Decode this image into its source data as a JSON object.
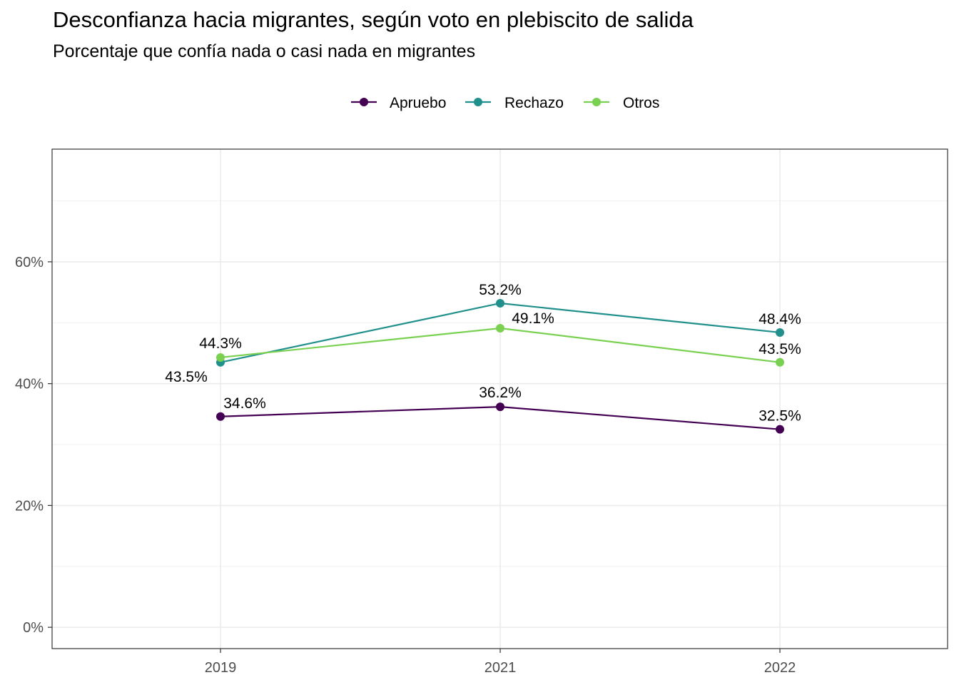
{
  "title": "Desconfianza hacia migrantes, según voto en plebiscito de salida",
  "subtitle": "Porcentaje que confía nada o casi nada en migrantes",
  "chart_data": {
    "type": "line",
    "title": "Desconfianza hacia migrantes, según voto en plebiscito de salida",
    "subtitle": "Porcentaje que confía nada o casi nada en migrantes",
    "xlabel": "",
    "ylabel": "",
    "categories": [
      "2019",
      "2021",
      "2022"
    ],
    "ylim": [
      -3.5,
      78.5
    ],
    "y_ticks": [
      0,
      20,
      40,
      60
    ],
    "y_tick_labels": [
      "0%",
      "20%",
      "40%",
      "60%"
    ],
    "grid": true,
    "legend_position": "top",
    "series": [
      {
        "name": "Apruebo",
        "color": "#440154",
        "values": [
          34.6,
          36.2,
          32.5
        ],
        "labels": [
          "34.6%",
          "36.2%",
          "32.5%"
        ]
      },
      {
        "name": "Rechazo",
        "color": "#21908C",
        "values": [
          43.5,
          53.2,
          48.4
        ],
        "labels": [
          "43.5%",
          "53.2%",
          "48.4%"
        ]
      },
      {
        "name": "Otros",
        "color": "#7AD151",
        "values": [
          44.3,
          49.1,
          43.5
        ],
        "labels": [
          "44.3%",
          "49.1%",
          "43.5%"
        ]
      }
    ]
  }
}
